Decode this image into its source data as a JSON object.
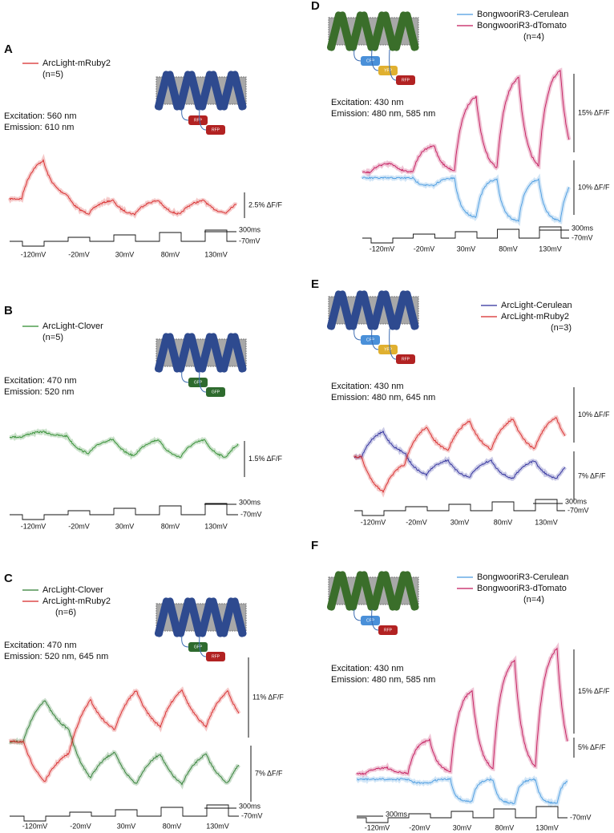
{
  "panels": [
    {
      "label": "A",
      "legend": [
        {
          "name": "ArcLight-mRuby2",
          "color": "#d62728"
        }
      ],
      "n": "(n=5)",
      "excitation": "Excitation: 560 nm",
      "emission": "Emission: 610 nm",
      "tags": [
        "RFP",
        "RFP"
      ],
      "scale_bars": [
        "2.5% ΔF/F"
      ],
      "steps": [
        "-120mV",
        "-20mV",
        "30mV",
        "80mV",
        "130mV"
      ],
      "time_bar": "300ms",
      "holding": "-70mV"
    },
    {
      "label": "B",
      "legend": [
        {
          "name": "ArcLight-Clover",
          "color": "#2e8b2e"
        }
      ],
      "n": "(n=5)",
      "excitation": "Excitation: 470 nm",
      "emission": "Emission: 520 nm",
      "tags": [
        "GFP",
        "GFP"
      ],
      "scale_bars": [
        "1.5% ΔF/F"
      ],
      "steps": [
        "-120mV",
        "-20mV",
        "30mV",
        "80mV",
        "130mV"
      ],
      "time_bar": "300ms",
      "holding": "-70mV"
    },
    {
      "label": "C",
      "legend": [
        {
          "name": "ArcLight-Clover",
          "color": "#2e7d32"
        },
        {
          "name": "ArcLight-mRuby2",
          "color": "#d62728"
        }
      ],
      "n": "(n=6)",
      "excitation": "Excitation: 470 nm",
      "emission": "Emission: 520 nm, 645 nm",
      "tags": [
        "GFP",
        "RFP"
      ],
      "scale_bars": [
        "11% ΔF/F",
        "7% ΔF/F"
      ],
      "steps": [
        "-120mV",
        "-20mV",
        "30mV",
        "80mV",
        "130mV"
      ],
      "time_bar": "300ms",
      "holding": "-70mV"
    },
    {
      "label": "D",
      "legend": [
        {
          "name": "BongwooriR3-Cerulean",
          "color": "#4a9be0"
        },
        {
          "name": "BongwooriR3-dTomato",
          "color": "#c2185b"
        }
      ],
      "n": "(n=4)",
      "excitation": "Excitation: 430 nm",
      "emission": "Emission: 480 nm, 585 nm",
      "tags": [
        "CFP",
        "YFP",
        "RFP"
      ],
      "scale_bars": [
        "15% ΔF/F",
        "10% ΔF/F"
      ],
      "steps": [
        "-120mV",
        "-20mV",
        "30mV",
        "80mV",
        "130mV"
      ],
      "time_bar": "300ms",
      "holding": "-70mV"
    },
    {
      "label": "E",
      "legend": [
        {
          "name": "ArcLight-Cerulean",
          "color": "#2c2c9a"
        },
        {
          "name": "ArcLight-mRuby2",
          "color": "#d62728"
        }
      ],
      "n": "(n=3)",
      "excitation": "Excitation: 430 nm",
      "emission": "Emission: 480 nm, 645 nm",
      "tags": [
        "CFP",
        "YFP",
        "RFP"
      ],
      "scale_bars": [
        "10% ΔF/F",
        "7% ΔF/F"
      ],
      "steps": [
        "-120mV",
        "-20mV",
        "30mV",
        "80mV",
        "130mV"
      ],
      "time_bar": "300ms",
      "holding": "-70mV"
    },
    {
      "label": "F",
      "legend": [
        {
          "name": "BongwooriR3-Cerulean",
          "color": "#4a9be0"
        },
        {
          "name": "BongwooriR3-dTomato",
          "color": "#c2185b"
        }
      ],
      "n": "(n=4)",
      "excitation": "Excitation: 430 nm",
      "emission": "Emission: 480 nm, 585 nm",
      "tags": [
        "CFP",
        "RFP"
      ],
      "scale_bars": [
        "15% ΔF/F",
        "5% ΔF/F"
      ],
      "steps": [
        "-120mV",
        "-20mV",
        "30mV",
        "80mV",
        "130mV"
      ],
      "time_bar": "300ms",
      "holding": "-70mV"
    }
  ]
}
